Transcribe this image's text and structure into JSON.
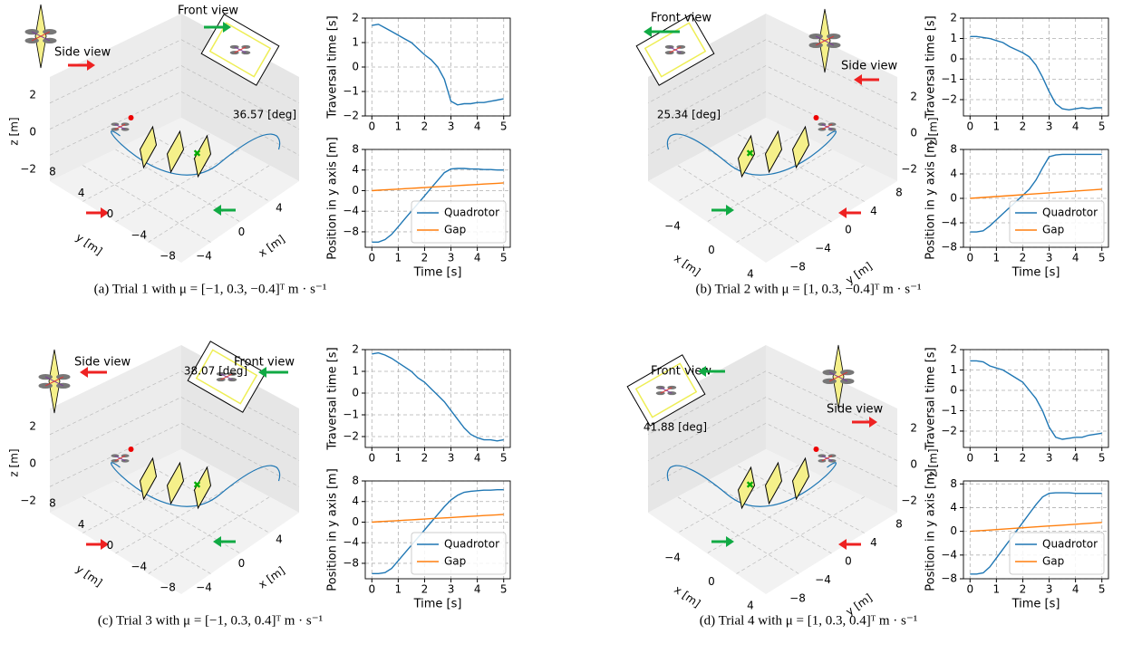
{
  "chart_data": [
    {
      "type": "line",
      "ylabel": "Traversal time [s]",
      "x": [
        0,
        0.25,
        0.5,
        0.75,
        1,
        1.25,
        1.5,
        1.75,
        2,
        2.25,
        2.5,
        2.75,
        3,
        3.25,
        3.5,
        3.75,
        4,
        4.25,
        4.5,
        4.75,
        5
      ],
      "xlim": [
        -0.25,
        5.25
      ],
      "xticks": [
        0,
        1,
        2,
        3,
        4,
        5
      ],
      "ylim": [
        -2,
        2
      ],
      "yticks": [
        {
          "value": -2,
          "label": "−2"
        },
        {
          "value": -1,
          "label": "−1"
        },
        0,
        1,
        2
      ],
      "grid": true,
      "series": [
        {
          "color": "#1f77b4",
          "values": [
            1.7,
            1.75,
            1.6,
            1.45,
            1.3,
            1.15,
            1.0,
            0.75,
            0.5,
            0.3,
            0.0,
            -0.5,
            -1.4,
            -1.55,
            -1.5,
            -1.5,
            -1.45,
            -1.45,
            -1.4,
            -1.35,
            -1.3
          ]
        }
      ]
    },
    {
      "type": "line",
      "ylabel": "Position in y axis [m]",
      "xlabel": "Time [s]",
      "x": [
        0,
        0.25,
        0.5,
        0.75,
        1,
        1.25,
        1.5,
        1.75,
        2,
        2.25,
        2.5,
        2.75,
        3,
        3.25,
        3.5,
        3.75,
        4,
        4.25,
        4.5,
        4.75,
        5
      ],
      "xlim": [
        -0.25,
        5.25
      ],
      "xticks": [
        0,
        1,
        2,
        3,
        4,
        5
      ],
      "ylim": [
        -11,
        8
      ],
      "yticks": [
        {
          "value": -8,
          "label": "−8"
        },
        {
          "value": -4,
          "label": "−4"
        },
        0,
        4,
        8
      ],
      "grid": true,
      "legend": "lower right",
      "series": [
        {
          "name": "Quadrotor",
          "color": "#1f77b4",
          "values": [
            -10,
            -10,
            -9.5,
            -8.5,
            -7,
            -5.5,
            -4,
            -2.5,
            -1,
            0.5,
            2,
            3.5,
            4.2,
            4.3,
            4.3,
            4.2,
            4.2,
            4.1,
            4.1,
            4.0,
            4.0
          ]
        },
        {
          "name": "Gap",
          "color": "#ff7f0e",
          "values": [
            0,
            0.075,
            0.15,
            0.225,
            0.3,
            0.375,
            0.45,
            0.525,
            0.6,
            0.675,
            0.75,
            0.825,
            0.9,
            0.975,
            1.05,
            1.125,
            1.2,
            1.275,
            1.35,
            1.425,
            1.5
          ]
        }
      ]
    },
    {
      "type": "line",
      "ylabel": "Traversal time [s]",
      "x": [
        0,
        0.25,
        0.5,
        0.75,
        1,
        1.25,
        1.5,
        1.75,
        2,
        2.25,
        2.5,
        2.75,
        3,
        3.25,
        3.5,
        3.75,
        4,
        4.25,
        4.5,
        4.75,
        5
      ],
      "xlim": [
        -0.25,
        5.25
      ],
      "xticks": [
        0,
        1,
        2,
        3,
        4,
        5
      ],
      "ylim": [
        -2.8,
        2
      ],
      "yticks": [
        {
          "value": -2,
          "label": "−2"
        },
        {
          "value": -1,
          "label": "−1"
        },
        0,
        1,
        2
      ],
      "grid": true,
      "series": [
        {
          "color": "#1f77b4",
          "values": [
            1.1,
            1.1,
            1.05,
            1.0,
            0.9,
            0.8,
            0.6,
            0.45,
            0.3,
            0.1,
            -0.3,
            -0.9,
            -1.6,
            -2.2,
            -2.45,
            -2.5,
            -2.45,
            -2.4,
            -2.45,
            -2.4,
            -2.4
          ]
        }
      ]
    },
    {
      "type": "line",
      "ylabel": "Position in y axis [m]",
      "xlabel": "Time [s]",
      "x": [
        0,
        0.25,
        0.5,
        0.75,
        1,
        1.25,
        1.5,
        1.75,
        2,
        2.25,
        2.5,
        2.75,
        3,
        3.25,
        3.5,
        3.75,
        4,
        4.25,
        4.5,
        4.75,
        5
      ],
      "xlim": [
        -0.25,
        5.25
      ],
      "xticks": [
        0,
        1,
        2,
        3,
        4,
        5
      ],
      "ylim": [
        -8,
        8
      ],
      "yticks": [
        {
          "value": -8,
          "label": "−8"
        },
        {
          "value": -4,
          "label": "−4"
        },
        0,
        4,
        8
      ],
      "grid": true,
      "legend": "lower right",
      "series": [
        {
          "name": "Quadrotor",
          "color": "#1f77b4",
          "values": [
            -5.5,
            -5.5,
            -5.3,
            -4.5,
            -3.5,
            -2.5,
            -1.5,
            -0.5,
            0.5,
            1.5,
            3,
            5,
            6.8,
            7.1,
            7.2,
            7.2,
            7.2,
            7.2,
            7.2,
            7.2,
            7.2
          ]
        },
        {
          "name": "Gap",
          "color": "#ff7f0e",
          "values": [
            0,
            0.075,
            0.15,
            0.225,
            0.3,
            0.375,
            0.45,
            0.525,
            0.6,
            0.675,
            0.75,
            0.825,
            0.9,
            0.975,
            1.05,
            1.125,
            1.2,
            1.275,
            1.35,
            1.425,
            1.5
          ]
        }
      ]
    },
    {
      "type": "line",
      "ylabel": "Traversal time [s]",
      "x": [
        0,
        0.25,
        0.5,
        0.75,
        1,
        1.25,
        1.5,
        1.75,
        2,
        2.25,
        2.5,
        2.75,
        3,
        3.25,
        3.5,
        3.75,
        4,
        4.25,
        4.5,
        4.75,
        5
      ],
      "xlim": [
        -0.25,
        5.25
      ],
      "xticks": [
        0,
        1,
        2,
        3,
        4,
        5
      ],
      "ylim": [
        -2.5,
        2
      ],
      "yticks": [
        {
          "value": -2,
          "label": "−2"
        },
        {
          "value": -1,
          "label": "−1"
        },
        0,
        1,
        2
      ],
      "grid": true,
      "series": [
        {
          "color": "#1f77b4",
          "values": [
            1.8,
            1.85,
            1.75,
            1.6,
            1.4,
            1.2,
            1.0,
            0.7,
            0.5,
            0.2,
            -0.1,
            -0.4,
            -0.8,
            -1.2,
            -1.6,
            -1.9,
            -2.05,
            -2.15,
            -2.15,
            -2.2,
            -2.15
          ]
        }
      ]
    },
    {
      "type": "line",
      "ylabel": "Position in y axis [m]",
      "xlabel": "Time [s]",
      "x": [
        0,
        0.25,
        0.5,
        0.75,
        1,
        1.25,
        1.5,
        1.75,
        2,
        2.25,
        2.5,
        2.75,
        3,
        3.25,
        3.5,
        3.75,
        4,
        4.25,
        4.5,
        4.75,
        5
      ],
      "xlim": [
        -0.25,
        5.25
      ],
      "xticks": [
        0,
        1,
        2,
        3,
        4,
        5
      ],
      "ylim": [
        -11,
        8
      ],
      "yticks": [
        {
          "value": -8,
          "label": "−8"
        },
        {
          "value": -4,
          "label": "−4"
        },
        0,
        4,
        8
      ],
      "grid": true,
      "legend": "lower right",
      "series": [
        {
          "name": "Quadrotor",
          "color": "#1f77b4",
          "values": [
            -10,
            -10,
            -9.8,
            -9,
            -7.5,
            -6,
            -4.5,
            -3,
            -1.5,
            0,
            1.5,
            3,
            4.3,
            5.2,
            5.8,
            6.0,
            6.1,
            6.2,
            6.2,
            6.3,
            6.3
          ]
        },
        {
          "name": "Gap",
          "color": "#ff7f0e",
          "values": [
            0,
            0.075,
            0.15,
            0.225,
            0.3,
            0.375,
            0.45,
            0.525,
            0.6,
            0.675,
            0.75,
            0.825,
            0.9,
            0.975,
            1.05,
            1.125,
            1.2,
            1.275,
            1.35,
            1.425,
            1.5
          ]
        }
      ]
    },
    {
      "type": "line",
      "ylabel": "Traversal time [s]",
      "x": [
        0,
        0.25,
        0.5,
        0.75,
        1,
        1.25,
        1.5,
        1.75,
        2,
        2.25,
        2.5,
        2.75,
        3,
        3.25,
        3.5,
        3.75,
        4,
        4.25,
        4.5,
        4.75,
        5
      ],
      "xlim": [
        -0.25,
        5.25
      ],
      "xticks": [
        0,
        1,
        2,
        3,
        4,
        5
      ],
      "ylim": [
        -2.8,
        2
      ],
      "yticks": [
        {
          "value": -2,
          "label": "−2"
        },
        {
          "value": -1,
          "label": "−1"
        },
        0,
        1,
        2
      ],
      "grid": true,
      "series": [
        {
          "color": "#1f77b4",
          "values": [
            1.45,
            1.45,
            1.4,
            1.2,
            1.1,
            1.0,
            0.8,
            0.6,
            0.4,
            0.0,
            -0.4,
            -1.0,
            -1.8,
            -2.3,
            -2.4,
            -2.35,
            -2.3,
            -2.3,
            -2.2,
            -2.15,
            -2.1
          ]
        }
      ]
    },
    {
      "type": "line",
      "ylabel": "Position in y axis [m]",
      "xlabel": "Time [s]",
      "x": [
        0,
        0.25,
        0.5,
        0.75,
        1,
        1.25,
        1.5,
        1.75,
        2,
        2.25,
        2.5,
        2.75,
        3,
        3.25,
        3.5,
        3.75,
        4,
        4.25,
        4.5,
        4.75,
        5
      ],
      "xlim": [
        -0.25,
        5.25
      ],
      "xticks": [
        0,
        1,
        2,
        3,
        4,
        5
      ],
      "ylim": [
        -8,
        8.5
      ],
      "yticks": [
        {
          "value": -8,
          "label": "−8"
        },
        {
          "value": -4,
          "label": "−4"
        },
        0,
        4,
        8
      ],
      "grid": true,
      "legend": "lower right",
      "series": [
        {
          "name": "Quadrotor",
          "color": "#1f77b4",
          "values": [
            -7.2,
            -7.2,
            -7,
            -6,
            -4.5,
            -3,
            -1.5,
            0,
            1.5,
            3,
            4.5,
            5.8,
            6.4,
            6.5,
            6.5,
            6.5,
            6.4,
            6.4,
            6.4,
            6.4,
            6.4
          ]
        },
        {
          "name": "Gap",
          "color": "#ff7f0e",
          "values": [
            0,
            0.075,
            0.15,
            0.225,
            0.3,
            0.375,
            0.45,
            0.525,
            0.6,
            0.675,
            0.75,
            0.825,
            0.9,
            0.975,
            1.05,
            1.125,
            1.2,
            1.275,
            1.35,
            1.425,
            1.5
          ]
        }
      ]
    }
  ],
  "panels": [
    {
      "caption": "(a) Trial 1 with μ = [−1, 0.3, −0.4]ᵀ m · s⁻¹",
      "front_view": "Front view",
      "side_view": "Side view",
      "angle": "36.57 [deg]",
      "x_label": "x [m]",
      "y_label": "y [m]",
      "z_label": "z [m]",
      "x_ticks": [
        "−4",
        "0",
        "4"
      ],
      "y_ticks": [
        "8",
        "4",
        "0",
        "−4",
        "−8"
      ],
      "z_ticks": [
        "2",
        "0",
        "−2"
      ]
    },
    {
      "caption": "(b) Trial 2 with μ = [1, 0.3, −0.4]ᵀ m · s⁻¹",
      "front_view": "Front view",
      "side_view": "Side view",
      "angle": "25.34 [deg]",
      "x_label": "x [m]",
      "y_label": "y [m]",
      "z_label": "z [m]",
      "x_ticks": [
        "−4",
        "0",
        "4"
      ],
      "y_ticks": [
        "8",
        "4",
        "0",
        "−4",
        "−8"
      ],
      "z_ticks": [
        "2",
        "0",
        "−2"
      ]
    },
    {
      "caption": "(c) Trial 3 with μ = [−1, 0.3, 0.4]ᵀ m · s⁻¹",
      "front_view": "Front view",
      "side_view": "Side view",
      "angle": "38.07 [deg]",
      "x_label": "x [m]",
      "y_label": "y [m]",
      "z_label": "z [m]",
      "x_ticks": [
        "−4",
        "0",
        "4"
      ],
      "y_ticks": [
        "8",
        "4",
        "0",
        "−4",
        "−8"
      ],
      "z_ticks": [
        "2",
        "0",
        "−2"
      ]
    },
    {
      "caption": "(d) Trial 4 with μ = [1, 0.3, 0.4]ᵀ m · s⁻¹",
      "front_view": "Front view",
      "side_view": "Side view",
      "angle": "41.88 [deg]",
      "x_label": "x [m]",
      "y_label": "y [m]",
      "z_label": "z [m]",
      "x_ticks": [
        "−4",
        "0",
        "4"
      ],
      "y_ticks": [
        "8",
        "4",
        "0",
        "−4",
        "−8"
      ],
      "z_ticks": [
        "2",
        "0",
        "−2"
      ]
    }
  ]
}
